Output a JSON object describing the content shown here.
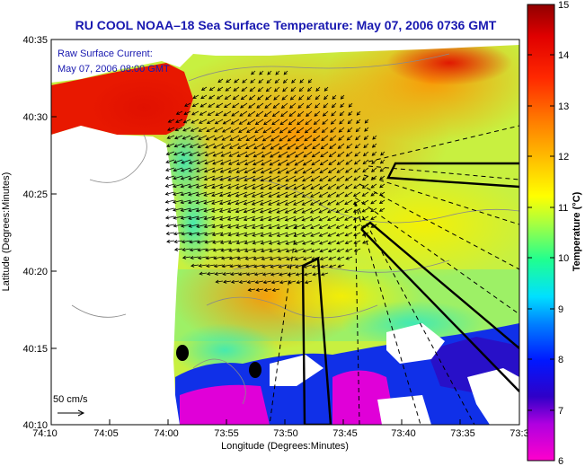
{
  "title": "RU COOL  NOAA–18  Sea Surface Temperature:  May 07, 2006 0736 GMT",
  "overlay": {
    "line1": "Raw Surface Current:",
    "line2": "May 07, 2006 08:00 GMT"
  },
  "scale_label": "50 cm/s",
  "colorbar": {
    "label": "Temperature (°C)",
    "min": 6,
    "max": 15,
    "ticks": [
      "15",
      "14",
      "13",
      "12",
      "11",
      "10",
      "9",
      "8",
      "7",
      "6"
    ]
  },
  "axes": {
    "xlabel": "Longitude (Degrees:Minutes)",
    "ylabel": "Latitude (Degrees:Minutes)",
    "xticks": [
      "74:10",
      "74:05",
      "74:00",
      "73:55",
      "73:50",
      "73:45",
      "73:40",
      "73:35",
      "73:3"
    ],
    "yticks": [
      "40:35",
      "40:30",
      "40:25",
      "40:20",
      "40:15",
      "40:10"
    ]
  },
  "colors": {
    "title": "#1818b0",
    "land": "#ffffff",
    "vectors": "#000000"
  }
}
